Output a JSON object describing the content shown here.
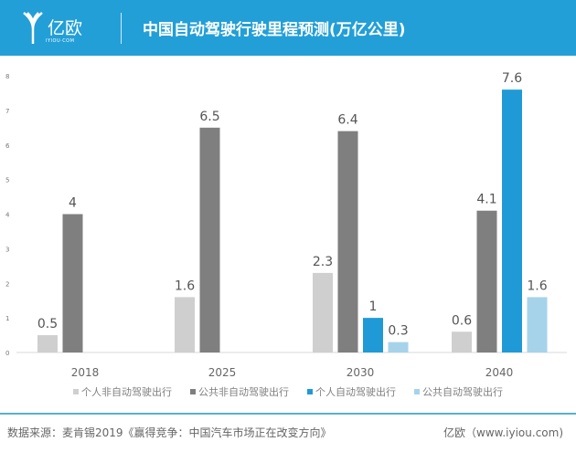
{
  "header": {
    "brand": "亿欧",
    "brand_sub": "IYIOU·COM",
    "title": "中国自动驾驶行驶里程预测(万亿公里)"
  },
  "chart_data": {
    "type": "bar",
    "title": "中国自动驾驶行驶里程预测(万亿公里)",
    "categories": [
      "2018",
      "2025",
      "2030",
      "2040"
    ],
    "series": [
      {
        "name": "个人非自动驾驶出行",
        "color": "#d0cfcf",
        "values": [
          0.5,
          1.6,
          2.3,
          0.6
        ]
      },
      {
        "name": "公共非自动驾驶出行",
        "color": "#7f7f7f",
        "values": [
          4,
          6.5,
          6.4,
          4.1
        ]
      },
      {
        "name": "个人自动驾驶出行",
        "color": "#1f9ad6",
        "values": [
          null,
          null,
          1,
          7.6
        ]
      },
      {
        "name": "公共自动驾驶出行",
        "color": "#a6d3ea",
        "values": [
          null,
          null,
          0.3,
          1.6
        ]
      }
    ],
    "ylim": [
      0,
      8
    ],
    "yticks": [
      "0",
      "1",
      "2",
      "3",
      "4",
      "5",
      "6",
      "7",
      "8"
    ],
    "legend": "bottom"
  },
  "footer": {
    "source": "数据来源：麦肯锡2019《赢得竞争：中国汽车市场正在改变方向》",
    "credit": "亿欧（www.iyiou.com)"
  }
}
